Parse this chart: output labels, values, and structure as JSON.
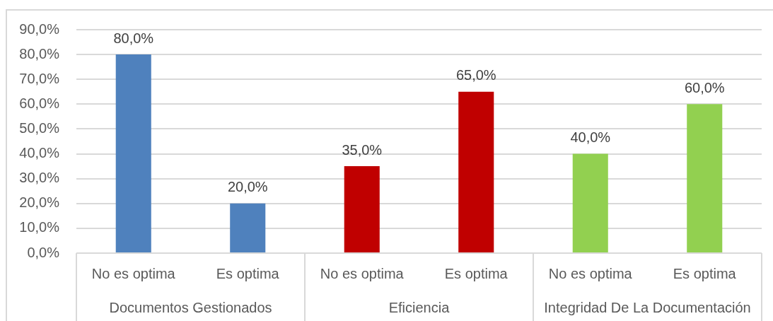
{
  "chart_data": {
    "type": "bar",
    "categories": [
      "Documentos Gestionados",
      "Eficiencia",
      "Integridad De La Documentación"
    ],
    "series": [
      {
        "name": "No es optima",
        "colors": [
          "#4f81bd",
          "#c00000",
          "#92d050"
        ],
        "values": [
          80,
          35,
          40
        ],
        "value_labels": [
          "80,0%",
          "35,0%",
          "40,0%"
        ]
      },
      {
        "name": "Es optima",
        "colors": [
          "#4f81bd",
          "#c00000",
          "#92d050"
        ],
        "values": [
          20,
          65,
          60
        ],
        "value_labels": [
          "20,0%",
          "65,0%",
          "60,0%"
        ]
      }
    ],
    "ylim": [
      0,
      90
    ],
    "yticks": [
      {
        "value": 0,
        "label": "0,0%"
      },
      {
        "value": 10,
        "label": "10,0%"
      },
      {
        "value": 20,
        "label": "20,0%"
      },
      {
        "value": 30,
        "label": "30,0%"
      },
      {
        "value": 40,
        "label": "40,0%"
      },
      {
        "value": 50,
        "label": "50,0%"
      },
      {
        "value": 60,
        "label": "60,0%"
      },
      {
        "value": 70,
        "label": "70,0%"
      },
      {
        "value": 80,
        "label": "80,0%"
      },
      {
        "value": 90,
        "label": "90,0%"
      }
    ],
    "grid": "y",
    "legend": false
  }
}
